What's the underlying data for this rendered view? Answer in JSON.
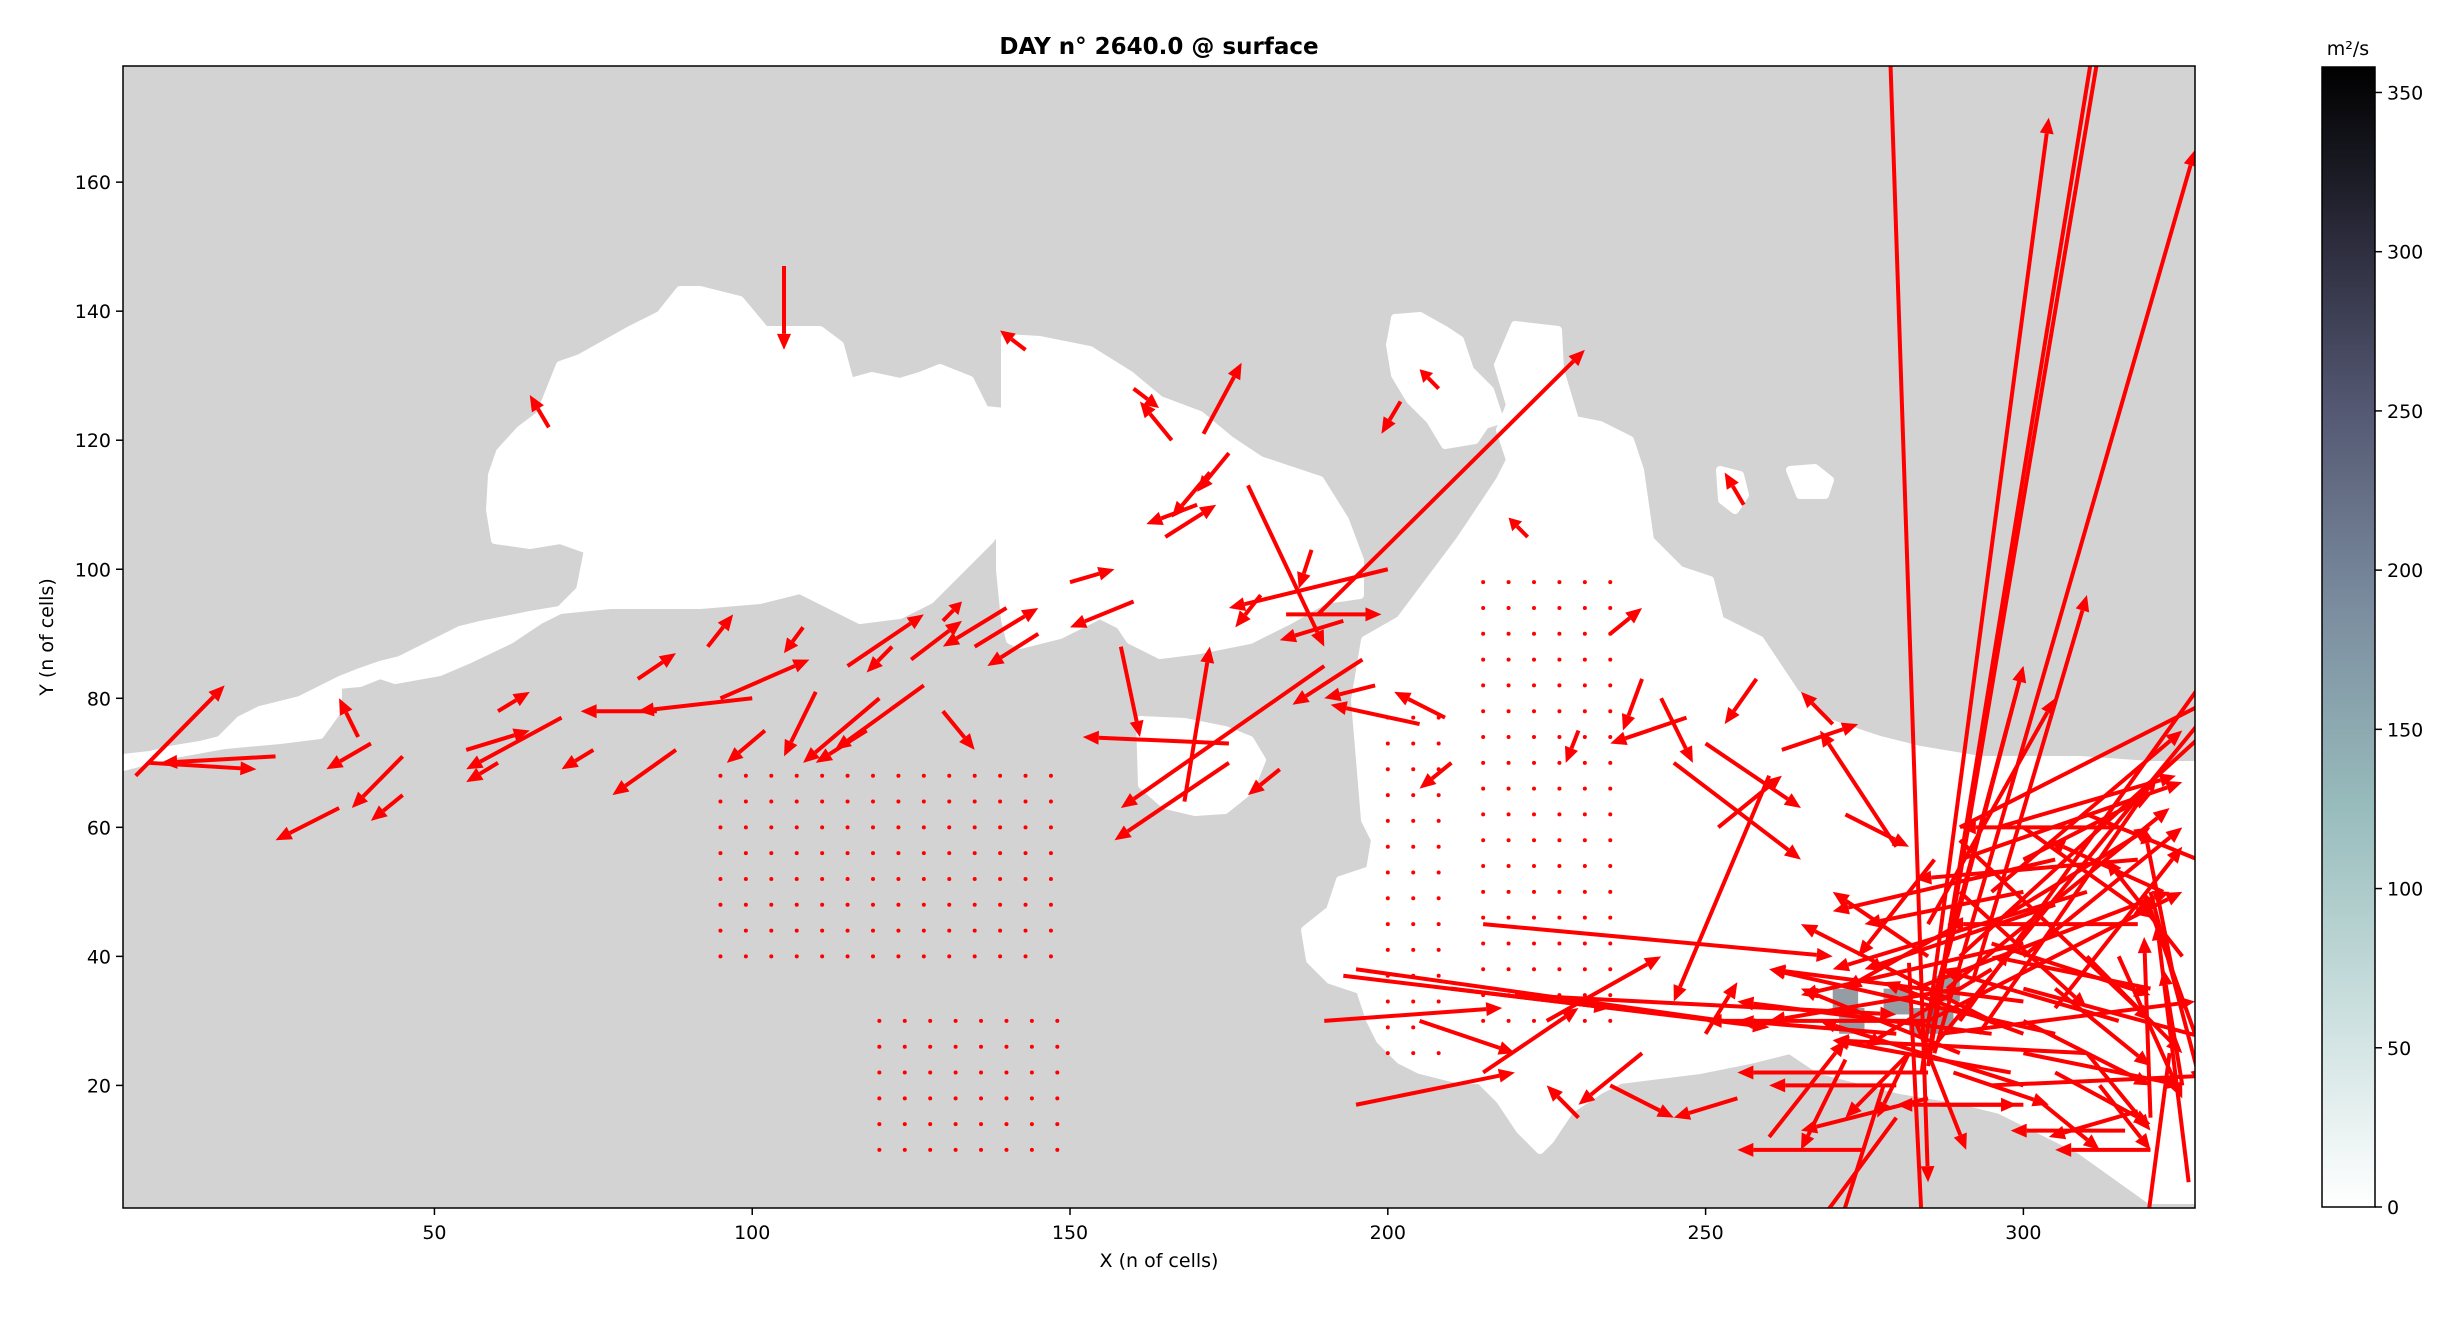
{
  "chart_data": {
    "type": "quiver",
    "title": "DAY n° 2640.0 @ surface",
    "xlabel": "X (n of cells)",
    "ylabel": "Y (n of cells)",
    "xlim": [
      1,
      327
    ],
    "ylim": [
      1,
      178
    ],
    "xticks": [
      50,
      100,
      150,
      200,
      250,
      300
    ],
    "yticks": [
      20,
      40,
      60,
      80,
      100,
      120,
      140,
      160
    ],
    "colorbar": {
      "label": "m²/s",
      "range": [
        0,
        358
      ],
      "ticks": [
        0,
        50,
        100,
        150,
        200,
        250,
        300,
        350
      ],
      "colormap": "bone_r"
    },
    "colors": {
      "land": "#d3d3d3",
      "sea": "#ffffff",
      "arrows": "#ff0000",
      "anomaly": "#3d4a5a"
    },
    "vectors": [
      [
        105,
        147,
        0,
        -13
      ],
      [
        68,
        122,
        -3,
        5
      ],
      [
        3,
        68,
        14,
        14
      ],
      [
        5,
        70,
        17,
        -1
      ],
      [
        25,
        71,
        -18,
        -1
      ],
      [
        40,
        73,
        -7,
        -4
      ],
      [
        45,
        71,
        -8,
        -8
      ],
      [
        60,
        70,
        -5,
        -3
      ],
      [
        55,
        72,
        10,
        3
      ],
      [
        70,
        77,
        -15,
        -8
      ],
      [
        85,
        78,
        -12,
        0
      ],
      [
        95,
        80,
        14,
        6
      ],
      [
        100,
        80,
        -18,
        -2
      ],
      [
        110,
        81,
        -5,
        -10
      ],
      [
        115,
        85,
        12,
        8
      ],
      [
        120,
        80,
        -12,
        -10
      ],
      [
        125,
        86,
        8,
        6
      ],
      [
        130,
        78,
        5,
        -6
      ],
      [
        135,
        88,
        10,
        6
      ],
      [
        145,
        90,
        -8,
        -5
      ],
      [
        88,
        72,
        -10,
        -7
      ],
      [
        102,
        75,
        -6,
        -5
      ],
      [
        118,
        75,
        -8,
        -5
      ],
      [
        127,
        82,
        -14,
        -10
      ],
      [
        140,
        94,
        -10,
        -6
      ],
      [
        35,
        63,
        -10,
        -5
      ],
      [
        45,
        65,
        -5,
        -4
      ],
      [
        38,
        74,
        -3,
        6
      ],
      [
        60,
        78,
        5,
        3
      ],
      [
        75,
        72,
        -5,
        -3
      ],
      [
        82,
        83,
        6,
        4
      ],
      [
        93,
        88,
        4,
        5
      ],
      [
        108,
        91,
        -3,
        -4
      ],
      [
        122,
        88,
        -4,
        -4
      ],
      [
        130,
        92,
        3,
        3
      ],
      [
        143,
        134,
        -4,
        3
      ],
      [
        160,
        128,
        4,
        -3
      ],
      [
        172,
        115,
        -6,
        -7
      ],
      [
        171,
        121,
        6,
        11
      ],
      [
        175,
        118,
        -5,
        -6
      ],
      [
        178,
        113,
        12,
        -25
      ],
      [
        170,
        110,
        -8,
        -3
      ],
      [
        188,
        103,
        -2,
        -6
      ],
      [
        200,
        100,
        -25,
        -6
      ],
      [
        180,
        96,
        -4,
        -5
      ],
      [
        166,
        120,
        -5,
        6
      ],
      [
        160,
        95,
        -10,
        -4
      ],
      [
        150,
        98,
        7,
        2
      ],
      [
        165,
        105,
        8,
        5
      ],
      [
        184,
        93,
        15,
        0
      ],
      [
        158,
        88,
        3,
        -14
      ],
      [
        175,
        70,
        -18,
        -12
      ],
      [
        168,
        64,
        4,
        24
      ],
      [
        175,
        73,
        -23,
        1
      ],
      [
        183,
        69,
        -5,
        -4
      ],
      [
        190,
        85,
        -32,
        -22
      ],
      [
        196,
        86,
        -11,
        -7
      ],
      [
        189,
        93,
        42,
        41
      ],
      [
        193,
        92,
        -10,
        -3
      ],
      [
        198,
        82,
        -8,
        -2
      ],
      [
        202,
        126,
        -3,
        -5
      ],
      [
        208,
        128,
        -3,
        3
      ],
      [
        205,
        76,
        -14,
        3
      ],
      [
        210,
        70,
        -5,
        -4
      ],
      [
        209,
        77,
        -8,
        4
      ],
      [
        222,
        105,
        -3,
        3
      ],
      [
        230,
        75,
        -2,
        -5
      ],
      [
        240,
        83,
        -3,
        -8
      ],
      [
        235,
        90,
        5,
        4
      ],
      [
        243,
        80,
        5,
        -10
      ],
      [
        245,
        70,
        20,
        -15
      ],
      [
        252,
        60,
        10,
        8
      ],
      [
        260,
        68,
        -15,
        -35
      ],
      [
        262,
        72,
        12,
        4
      ],
      [
        247,
        77,
        -12,
        -4
      ],
      [
        250,
        73,
        15,
        -10
      ],
      [
        258,
        83,
        -5,
        -7
      ],
      [
        256,
        110,
        -3,
        5
      ],
      [
        270,
        76,
        -5,
        5
      ],
      [
        272,
        62,
        10,
        -5
      ],
      [
        215,
        45,
        55,
        -5
      ],
      [
        193,
        37,
        42,
        -5
      ],
      [
        195,
        38,
        65,
        -9
      ],
      [
        210,
        35,
        50,
        -6
      ],
      [
        220,
        34,
        60,
        -3
      ],
      [
        190,
        30,
        28,
        2
      ],
      [
        195,
        17,
        25,
        5
      ],
      [
        235,
        20,
        10,
        -5
      ],
      [
        240,
        25,
        -10,
        -8
      ],
      [
        225,
        30,
        18,
        10
      ],
      [
        230,
        15,
        -5,
        5
      ],
      [
        215,
        22,
        15,
        10
      ],
      [
        205,
        30,
        15,
        -5
      ],
      [
        250,
        28,
        5,
        8
      ],
      [
        255,
        18,
        -10,
        -3
      ],
      [
        280,
        20,
        -20,
        0
      ],
      [
        287,
        17,
        12,
        0
      ],
      [
        282,
        25,
        -10,
        -10
      ],
      [
        272,
        24,
        -7,
        -14
      ],
      [
        260,
        12,
        12,
        15
      ],
      [
        275,
        10,
        -20,
        0
      ],
      [
        300,
        17,
        -20,
        0
      ],
      [
        320,
        10,
        -15,
        0
      ],
      [
        318,
        16,
        -14,
        -4
      ],
      [
        316,
        13,
        -18,
        0
      ],
      [
        279,
        181,
        6,
        -176
      ],
      [
        282,
        39,
        3,
        -60
      ],
      [
        286,
        55,
        -12,
        -15
      ],
      [
        280,
        57,
        -12,
        18
      ],
      [
        284,
        22,
        20,
        148
      ],
      [
        285,
        23,
        27,
        158
      ],
      [
        285,
        24,
        26,
        157
      ],
      [
        286,
        25,
        41,
        140
      ],
      [
        290,
        30,
        40,
        55
      ],
      [
        290,
        40,
        50,
        45
      ],
      [
        285,
        25,
        50,
        60
      ],
      [
        290,
        60,
        40,
        20
      ],
      [
        295,
        50,
        30,
        25
      ],
      [
        300,
        55,
        20,
        10
      ],
      [
        295,
        45,
        25,
        15
      ],
      [
        288,
        35,
        35,
        28
      ],
      [
        293,
        28,
        28,
        40
      ],
      [
        285,
        45,
        20,
        35
      ],
      [
        300,
        40,
        25,
        20
      ],
      [
        305,
        32,
        20,
        25
      ],
      [
        290,
        55,
        35,
        12
      ],
      [
        296,
        60,
        28,
        8
      ],
      [
        285,
        30,
        15,
        55
      ],
      [
        288,
        40,
        12,
        45
      ],
      [
        292,
        36,
        18,
        60
      ],
      [
        285,
        30,
        40,
        20
      ],
      [
        283,
        35,
        40,
        15
      ],
      [
        287,
        28,
        40,
        5
      ],
      [
        295,
        20,
        45,
        2
      ],
      [
        300,
        25,
        25,
        -5
      ],
      [
        300,
        30,
        20,
        -10
      ],
      [
        305,
        35,
        15,
        -12
      ],
      [
        310,
        40,
        15,
        -15
      ],
      [
        295,
        38,
        -20,
        -12
      ],
      [
        290,
        45,
        -18,
        -10
      ],
      [
        300,
        50,
        -25,
        -5
      ],
      [
        305,
        48,
        -30,
        -10
      ],
      [
        300,
        42,
        -35,
        -8
      ],
      [
        310,
        50,
        -40,
        -12
      ],
      [
        305,
        55,
        -35,
        -8
      ],
      [
        290,
        35,
        -30,
        -5
      ],
      [
        285,
        30,
        -35,
        0
      ],
      [
        280,
        28,
        -25,
        2
      ],
      [
        285,
        22,
        -30,
        0
      ],
      [
        295,
        28,
        -40,
        5
      ],
      [
        300,
        20,
        -32,
        10
      ],
      [
        310,
        25,
        -40,
        2
      ],
      [
        315,
        30,
        -28,
        8
      ],
      [
        320,
        35,
        -25,
        5
      ],
      [
        318,
        45,
        -30,
        0
      ],
      [
        318,
        55,
        -35,
        -3
      ],
      [
        315,
        60,
        -25,
        0
      ],
      [
        322,
        50,
        -18,
        8
      ],
      [
        325,
        40,
        -12,
        15
      ],
      [
        327,
        28,
        -8,
        22
      ],
      [
        325,
        20,
        -3,
        18
      ],
      [
        324,
        35,
        -5,
        25
      ],
      [
        320,
        15,
        -1,
        28
      ],
      [
        323,
        25,
        -4,
        -30
      ],
      [
        326,
        5,
        -5,
        40
      ],
      [
        310,
        25,
        10,
        -12
      ],
      [
        305,
        22,
        15,
        -8
      ],
      [
        300,
        35,
        30,
        -8
      ],
      [
        295,
        42,
        25,
        -8
      ],
      [
        290,
        50,
        20,
        -18
      ],
      [
        290,
        58,
        30,
        -28
      ],
      [
        300,
        60,
        20,
        -14
      ],
      [
        310,
        62,
        20,
        -8
      ],
      [
        315,
        40,
        10,
        -22
      ],
      [
        320,
        50,
        8,
        -30
      ],
      [
        283,
        30,
        8,
        -20
      ],
      [
        282,
        25,
        -5,
        -10
      ],
      [
        289,
        22,
        15,
        -5
      ],
      [
        302,
        18,
        10,
        -8
      ],
      [
        312,
        20,
        8,
        -10
      ],
      [
        300,
        28,
        -22,
        8
      ],
      [
        285,
        40,
        -15,
        10
      ],
      [
        290,
        25,
        -25,
        10
      ],
      [
        295,
        30,
        -30,
        15
      ],
      [
        300,
        33,
        -40,
        5
      ],
      [
        305,
        28,
        -45,
        10
      ],
      [
        298,
        22,
        -28,
        5
      ],
      [
        285,
        18,
        -20,
        -5
      ],
      [
        278,
        20,
        -8,
        -25
      ],
      [
        280,
        15,
        -15,
        -20
      ]
    ],
    "anomaly_cells": [
      [
        272,
        33
      ],
      [
        273,
        30
      ],
      [
        280,
        33
      ],
      [
        284,
        30
      ],
      [
        287,
        30
      ],
      [
        288,
        35
      ]
    ]
  }
}
